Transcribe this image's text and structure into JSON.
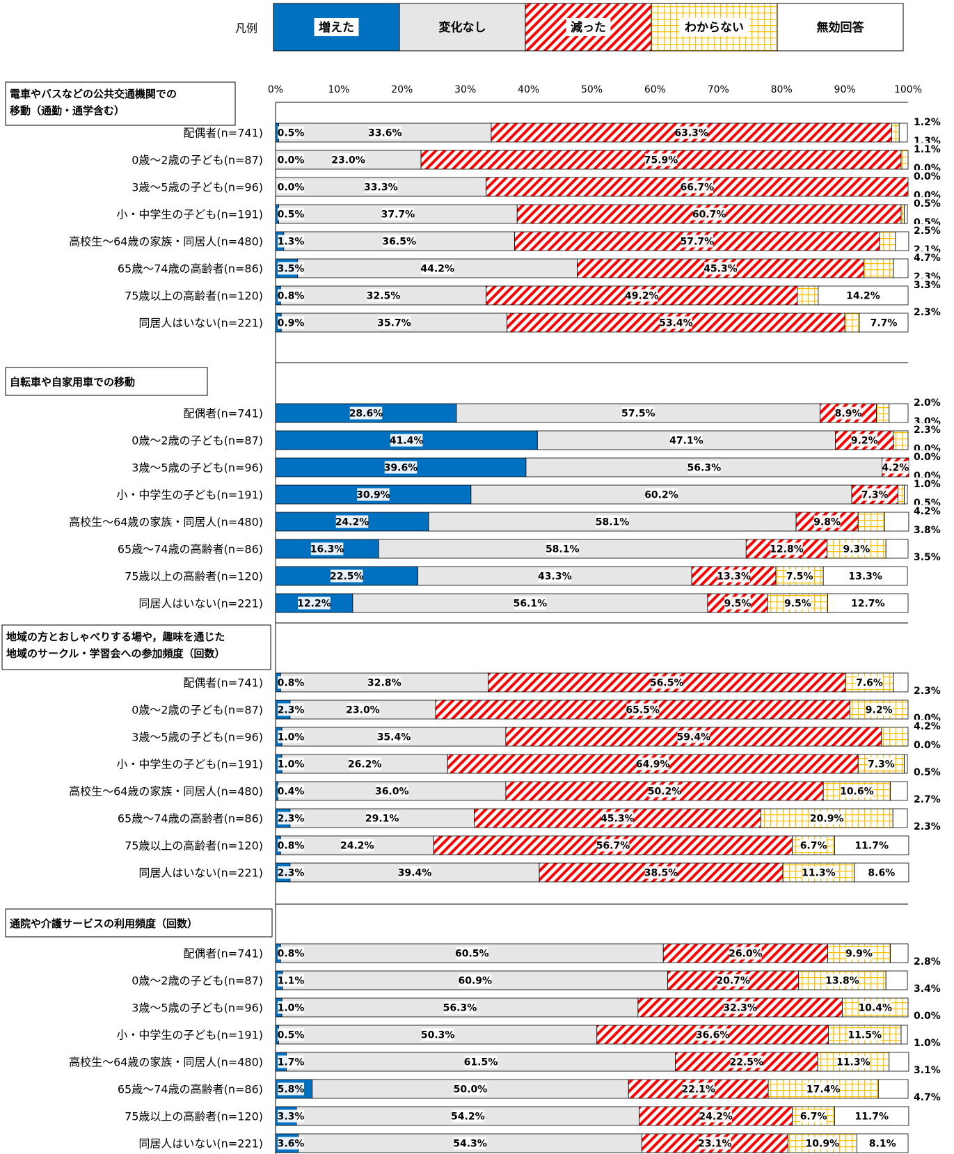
{
  "legend_title": "凡例",
  "chart_data": {
    "type": "bar",
    "orientation": "horizontal",
    "stacked": true,
    "xlim": [
      0,
      100
    ],
    "xticks": [
      "0%",
      "10%",
      "20%",
      "30%",
      "40%",
      "50%",
      "60%",
      "70%",
      "80%",
      "90%",
      "100%"
    ],
    "categories": [
      "増えた",
      "変化なし",
      "減った",
      "わからない",
      "無効回答"
    ],
    "colors": {
      "増えた": "#0070c0",
      "変化なし": "#e6e6e6",
      "減った": "#ff0000",
      "わからない": "#ffc000",
      "無効回答": "#ffffff"
    },
    "groups": [
      {
        "title_lines": [
          "電車やバスなどの公共交通機関での",
          "移動（通勤・通学含む）"
        ],
        "rows": [
          {
            "label": "配偶者(n=741)",
            "values": [
              0.5,
              33.6,
              63.3,
              1.2,
              1.3
            ]
          },
          {
            "label": "0歳～2歳の子ども(n=87)",
            "values": [
              0.0,
              23.0,
              75.9,
              1.1,
              0.0
            ]
          },
          {
            "label": "3歳～5歳の子ども(n=96)",
            "values": [
              0.0,
              33.3,
              66.7,
              0.0,
              0.0
            ]
          },
          {
            "label": "小・中学生の子ども(n=191)",
            "values": [
              0.5,
              37.7,
              60.7,
              0.5,
              0.5
            ]
          },
          {
            "label": "高校生～64歳の家族・同居人(n=480)",
            "values": [
              1.3,
              36.5,
              57.7,
              2.5,
              2.1
            ]
          },
          {
            "label": "65歳～74歳の高齢者(n=86)",
            "values": [
              3.5,
              44.2,
              45.3,
              4.7,
              2.3
            ]
          },
          {
            "label": "75歳以上の高齢者(n=120)",
            "values": [
              0.8,
              32.5,
              49.2,
              3.3,
              14.2
            ]
          },
          {
            "label": "同居人はいない(n=221)",
            "values": [
              0.9,
              35.7,
              53.4,
              2.3,
              7.7
            ]
          }
        ]
      },
      {
        "title_lines": [
          "自転車や自家用車での移動"
        ],
        "rows": [
          {
            "label": "配偶者(n=741)",
            "values": [
              28.6,
              57.5,
              8.9,
              2.0,
              3.0
            ]
          },
          {
            "label": "0歳～2歳の子ども(n=87)",
            "values": [
              41.4,
              47.1,
              9.2,
              2.3,
              0.0
            ]
          },
          {
            "label": "3歳～5歳の子ども(n=96)",
            "values": [
              39.6,
              56.3,
              4.2,
              0.0,
              0.0
            ]
          },
          {
            "label": "小・中学生の子ども(n=191)",
            "values": [
              30.9,
              60.2,
              7.3,
              1.0,
              0.5
            ]
          },
          {
            "label": "高校生～64歳の家族・同居人(n=480)",
            "values": [
              24.2,
              58.1,
              9.8,
              4.2,
              3.8
            ]
          },
          {
            "label": "65歳～74歳の高齢者(n=86)",
            "values": [
              16.3,
              58.1,
              12.8,
              9.3,
              3.5
            ]
          },
          {
            "label": "75歳以上の高齢者(n=120)",
            "values": [
              22.5,
              43.3,
              13.3,
              7.5,
              13.3
            ]
          },
          {
            "label": "同居人はいない(n=221)",
            "values": [
              12.2,
              56.1,
              9.5,
              9.5,
              12.7
            ]
          }
        ]
      },
      {
        "title_lines": [
          "地域の方とおしゃべりする場や，趣味を通じた",
          "地域のサークル・学習会への参加頻度（回数）"
        ],
        "rows": [
          {
            "label": "配偶者(n=741)",
            "values": [
              0.8,
              32.8,
              56.5,
              7.6,
              2.3
            ]
          },
          {
            "label": "0歳～2歳の子ども(n=87)",
            "values": [
              2.3,
              23.0,
              65.5,
              9.2,
              0.0
            ]
          },
          {
            "label": "3歳～5歳の子ども(n=96)",
            "values": [
              1.0,
              35.4,
              59.4,
              4.2,
              0.0
            ]
          },
          {
            "label": "小・中学生の子ども(n=191)",
            "values": [
              1.0,
              26.2,
              64.9,
              7.3,
              0.5
            ]
          },
          {
            "label": "高校生～64歳の家族・同居人(n=480)",
            "values": [
              0.4,
              36.0,
              50.2,
              10.6,
              2.7
            ]
          },
          {
            "label": "65歳～74歳の高齢者(n=86)",
            "values": [
              2.3,
              29.1,
              45.3,
              20.9,
              2.3
            ]
          },
          {
            "label": "75歳以上の高齢者(n=120)",
            "values": [
              0.8,
              24.2,
              56.7,
              6.7,
              11.7
            ]
          },
          {
            "label": "同居人はいない(n=221)",
            "values": [
              2.3,
              39.4,
              38.5,
              11.3,
              8.6
            ]
          }
        ]
      },
      {
        "title_lines": [
          "通院や介護サービスの利用頻度（回数）"
        ],
        "rows": [
          {
            "label": "配偶者(n=741)",
            "values": [
              0.8,
              60.5,
              26.0,
              9.9,
              2.8
            ]
          },
          {
            "label": "0歳～2歳の子ども(n=87)",
            "values": [
              1.1,
              60.9,
              20.7,
              13.8,
              3.4
            ]
          },
          {
            "label": "3歳～5歳の子ども(n=96)",
            "values": [
              1.0,
              56.3,
              32.3,
              10.4,
              0.0
            ]
          },
          {
            "label": "小・中学生の子ども(n=191)",
            "values": [
              0.5,
              50.3,
              36.6,
              11.5,
              1.0
            ]
          },
          {
            "label": "高校生～64歳の家族・同居人(n=480)",
            "values": [
              1.7,
              61.5,
              22.5,
              11.3,
              3.1
            ]
          },
          {
            "label": "65歳～74歳の高齢者(n=86)",
            "values": [
              5.8,
              50.0,
              22.1,
              17.4,
              4.7
            ]
          },
          {
            "label": "75歳以上の高齢者(n=120)",
            "values": [
              3.3,
              54.2,
              24.2,
              6.7,
              11.7
            ]
          },
          {
            "label": "同居人はいない(n=221)",
            "values": [
              3.6,
              54.3,
              23.1,
              10.9,
              8.1
            ]
          }
        ]
      }
    ]
  }
}
